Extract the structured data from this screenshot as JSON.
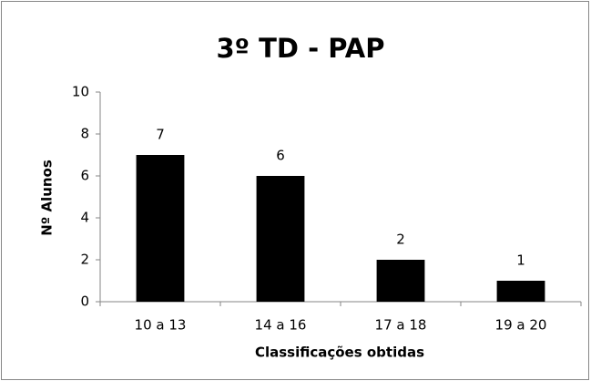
{
  "chart_data": {
    "type": "bar",
    "title": "3º TD - PAP",
    "x_label": "Classificações obtidas",
    "y_label": "Nº Alunos",
    "categories": [
      "10 a 13",
      "14 a 16",
      "17 a 18",
      "19 a 20"
    ],
    "values": [
      7,
      6,
      2,
      1
    ],
    "color": "#000000",
    "ylim": [
      0,
      10
    ],
    "yticks": [
      0,
      2,
      4,
      6,
      8,
      10
    ],
    "grid": false
  }
}
